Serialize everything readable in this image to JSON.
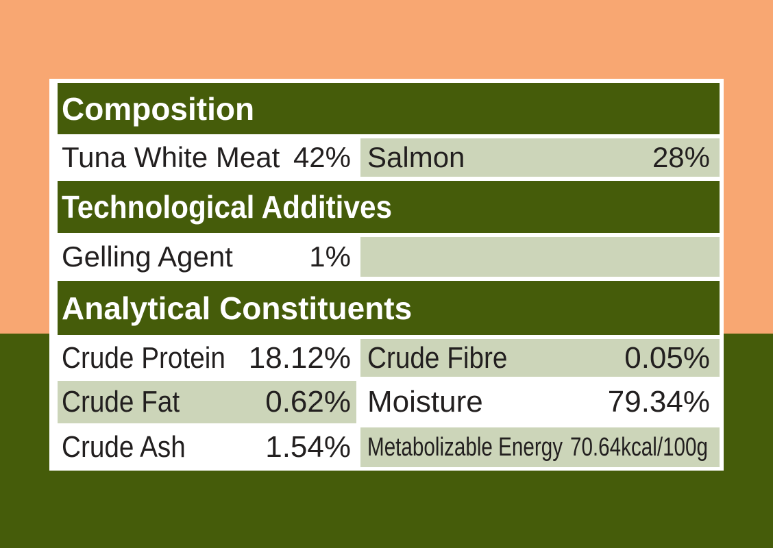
{
  "colors": {
    "background_top": "#f8a772",
    "background_bottom": "#455c0a",
    "header_green": "#455c0a",
    "cell_light_green": "#ccd5b9",
    "cell_white": "#ffffff",
    "text_dark": "#221f1f",
    "header_text_white": "#ffffff"
  },
  "label": {
    "headers": {
      "composition": "Composition",
      "technological_additives": "Technological Additives",
      "analytical_constituents": "Analytical Constituents"
    },
    "composition_row": {
      "left": {
        "name": "Tuna White Meat",
        "value": "42%"
      },
      "right": {
        "name": "Salmon",
        "value": "28%"
      }
    },
    "technological_row": {
      "left": {
        "name": "Gelling Agent",
        "value": "1%"
      }
    },
    "analytical_rows": [
      {
        "left": {
          "name": "Crude Protein",
          "value": "18.12%"
        },
        "right": {
          "name": "Crude Fibre",
          "value": "0.05%"
        }
      },
      {
        "left": {
          "name": "Crude Fat",
          "value": "0.62%"
        },
        "right": {
          "name": "Moisture",
          "value": "79.34%"
        }
      },
      {
        "left": {
          "name": "Crude Ash",
          "value": "1.54%"
        },
        "right": {
          "name": "Metabolizable Energy",
          "value": "70.64kcal/100g"
        }
      }
    ]
  }
}
